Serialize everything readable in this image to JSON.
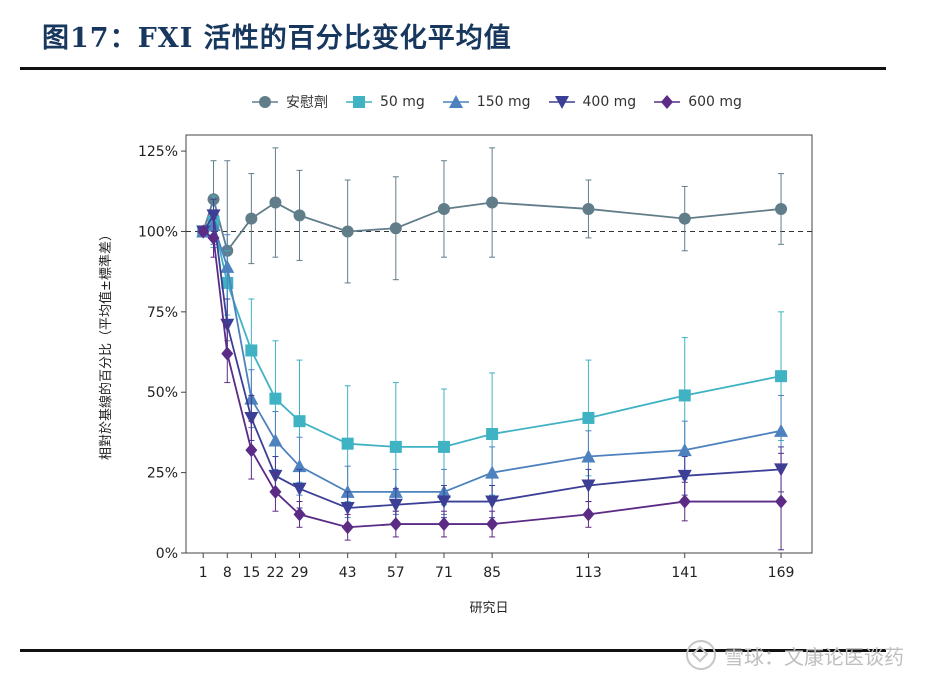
{
  "header": {
    "title": "图17：FXI 活性的百分比变化平均值"
  },
  "watermark": {
    "text": "雪球：文康论医谈药"
  },
  "colors": {
    "placebo": "#627d8a",
    "mg50": "#3fb2c4",
    "mg150": "#4d82be",
    "mg400": "#3c3f96",
    "mg600": "#5b2b86"
  },
  "chart_data": {
    "type": "line",
    "xlabel": "研究日",
    "ylabel": "相對於基線的百分比（平均值±標準差）",
    "x": [
      1,
      4,
      8,
      15,
      22,
      29,
      43,
      57,
      71,
      85,
      113,
      141,
      169
    ],
    "x_ticks": [
      1,
      8,
      15,
      22,
      29,
      43,
      57,
      71,
      85,
      113,
      141,
      169
    ],
    "y_ticks": [
      "0%",
      "25%",
      "50%",
      "75%",
      "100%",
      "125%"
    ],
    "y_tick_values": [
      0,
      25,
      50,
      75,
      100,
      125
    ],
    "ylim": [
      0,
      130
    ],
    "reference_line": 100,
    "legend_position": "top",
    "series": [
      {
        "name": "安慰劑",
        "marker": "circle",
        "color": "#627d8a",
        "values": [
          100,
          110,
          94,
          104,
          109,
          105,
          100,
          101,
          107,
          109,
          107,
          104,
          107
        ],
        "err": [
          0,
          12,
          28,
          14,
          17,
          14,
          16,
          16,
          15,
          17,
          9,
          10,
          11
        ]
      },
      {
        "name": "50 mg",
        "marker": "square",
        "color": "#3fb2c4",
        "values": [
          100,
          103,
          84,
          63,
          48,
          41,
          34,
          33,
          33,
          37,
          42,
          49,
          55
        ],
        "err": [
          0,
          8,
          10,
          16,
          18,
          19,
          18,
          20,
          18,
          19,
          18,
          18,
          20
        ]
      },
      {
        "name": "150 mg",
        "marker": "triangle-up",
        "color": "#4d82be",
        "values": [
          100,
          102,
          89,
          48,
          35,
          27,
          19,
          19,
          19,
          25,
          30,
          32,
          38
        ],
        "err": [
          0,
          6,
          10,
          9,
          9,
          9,
          8,
          7,
          7,
          8,
          8,
          9,
          11
        ]
      },
      {
        "name": "400 mg",
        "marker": "triangle-down",
        "color": "#3c3f96",
        "values": [
          100,
          105,
          71,
          42,
          24,
          20,
          14,
          15,
          16,
          16,
          21,
          24,
          26
        ],
        "err": [
          0,
          5,
          8,
          7,
          6,
          6,
          5,
          5,
          5,
          5,
          5,
          6,
          7
        ]
      },
      {
        "name": "600 mg",
        "marker": "diamond",
        "color": "#5b2b86",
        "values": [
          100,
          98,
          62,
          32,
          19,
          12,
          8,
          9,
          9,
          9,
          12,
          16,
          16
        ],
        "err": [
          0,
          6,
          9,
          9,
          6,
          4,
          4,
          4,
          4,
          4,
          4,
          6,
          15
        ]
      }
    ]
  }
}
